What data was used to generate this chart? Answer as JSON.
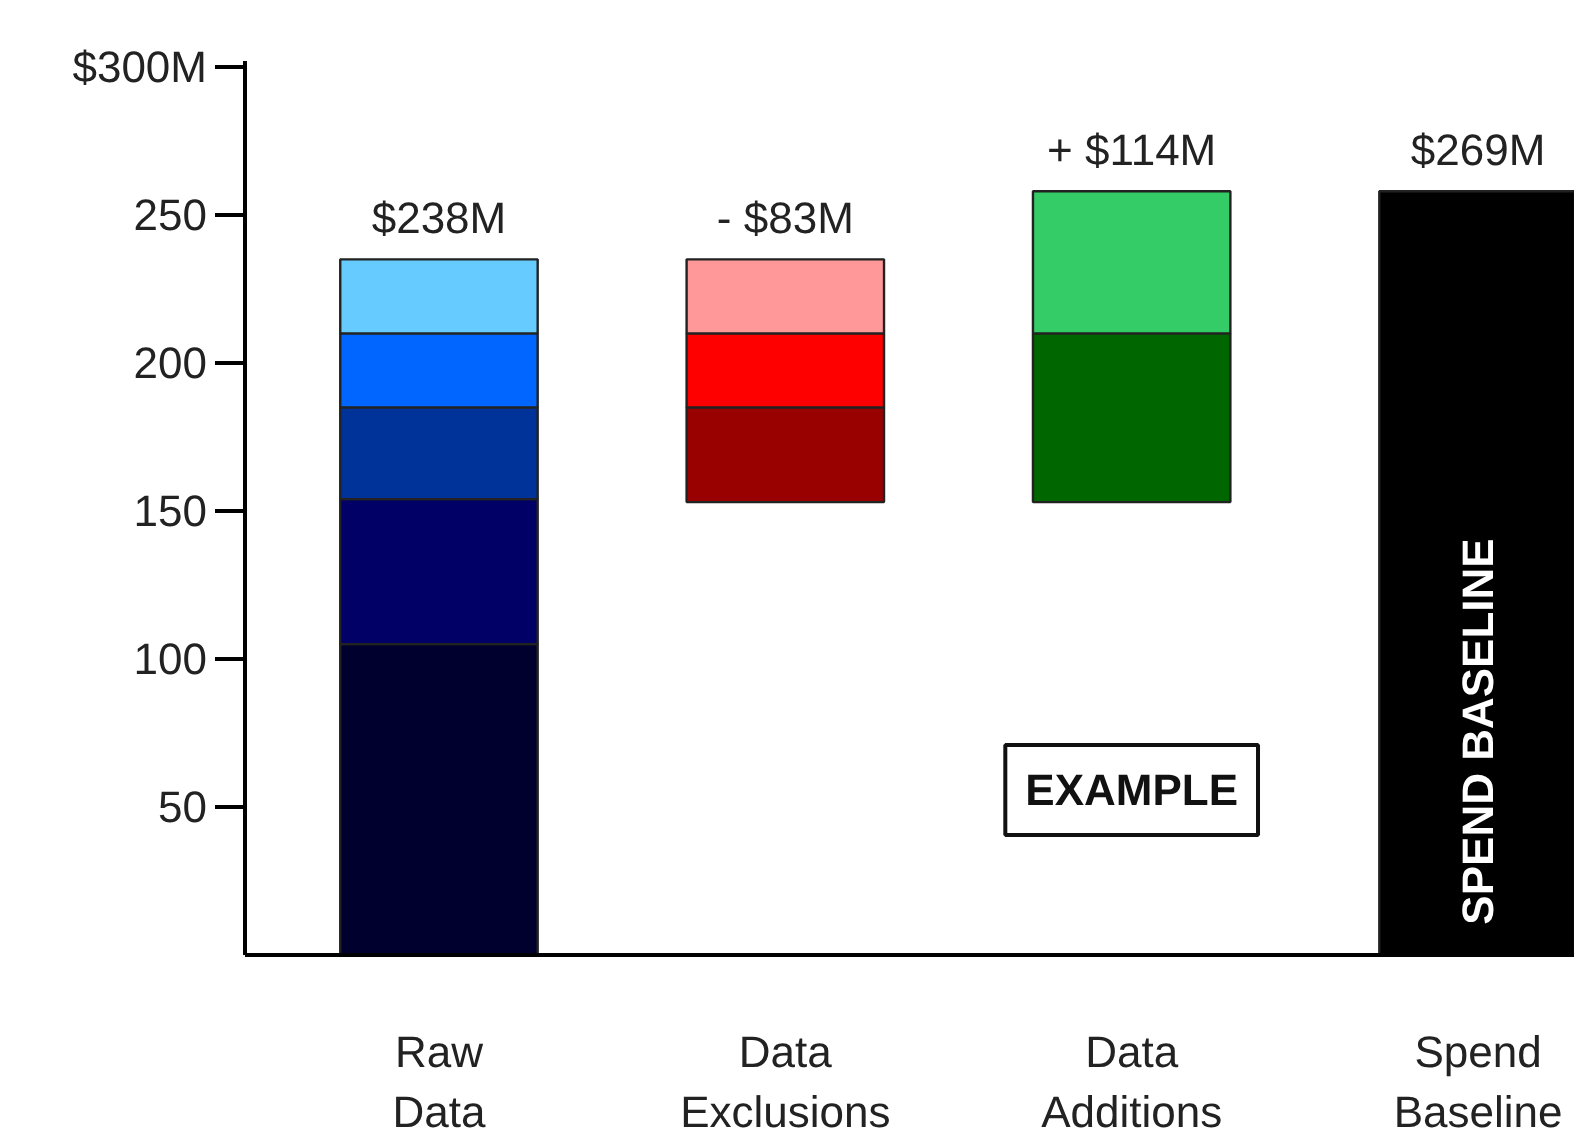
{
  "chart_data": {
    "type": "bar",
    "categories": [
      "Raw\nData",
      "Data\nExclusions",
      "Data\nAdditions",
      "Spend\nBaseline"
    ],
    "series": [
      {
        "colors": [
          "#00002e",
          "#990000",
          "#006600",
          "#000000"
        ],
        "base": [
          0,
          153,
          153,
          0
        ],
        "values": [
          105,
          32,
          57,
          258
        ]
      },
      {
        "colors": [
          "#000066",
          "#ff0000",
          "#33cc66",
          null
        ],
        "base": [
          105,
          185,
          210,
          null
        ],
        "values": [
          49,
          25,
          48,
          null
        ]
      },
      {
        "colors": [
          "#003399",
          "#ff9999",
          null,
          null
        ],
        "base": [
          154,
          210,
          null,
          null
        ],
        "values": [
          31,
          25,
          null,
          null
        ]
      },
      {
        "colors": [
          "#0066ff",
          null,
          null,
          null
        ],
        "base": [
          185,
          null,
          null,
          null
        ],
        "values": [
          25,
          null,
          null,
          null
        ]
      },
      {
        "colors": [
          "#66ccff",
          null,
          null,
          null
        ],
        "base": [
          210,
          null,
          null,
          null
        ],
        "values": [
          25,
          null,
          null,
          null
        ]
      }
    ],
    "ylim": [
      0,
      302
    ],
    "yticks": [
      {
        "value": 50,
        "label": "50"
      },
      {
        "value": 100,
        "label": "100"
      },
      {
        "value": 150,
        "label": "150"
      },
      {
        "value": 200,
        "label": "200"
      },
      {
        "value": 250,
        "label": "250"
      },
      {
        "value": 300,
        "label": "$300M"
      }
    ],
    "annotations": [
      {
        "text": "$238M",
        "x": "Raw\nData",
        "y": 235
      },
      {
        "text": "- $83M",
        "x": "Data\nExclusions",
        "y": 235
      },
      {
        "text": "+ $114M",
        "x": "Data\nAdditions",
        "y": 258
      },
      {
        "text": "$269M",
        "x": "Spend\nBaseline",
        "y": 258
      },
      "EXAMPLE",
      "SPEND BASELINE"
    ]
  }
}
